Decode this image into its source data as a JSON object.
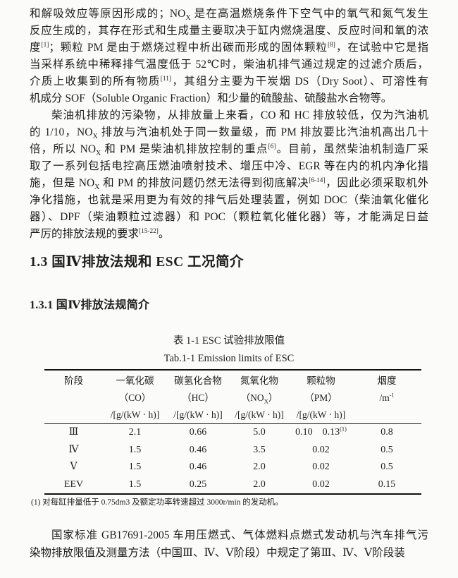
{
  "colors": {
    "paper": "#fbfbf9",
    "ink": "#1e1e1e",
    "table_rule": "#111111"
  },
  "document": {
    "paragraphs": [
      {
        "indent_first": false,
        "lines": [
          "和解吸效应等原因形成的；NO_{X} 是在高温燃烧条件下空气中的氧气和氮气发生",
          "反应生成的，其存在形式和生成量主要取决于缸内燃烧温度、反应时间和氧的浓",
          "度^{[1]}；颗粒 PM 是由于燃烧过程中析出碳而形成的固体颗粒^{[8]}，在试验中它是指",
          "当采样系统中稀释排气温度低于 52℃时，柴油机排气通过规定的过滤介质后，",
          "介质上收集到的所有物质^{[11]}，其组分主要为干炭烟 DS（Dry Soot）、可溶性有",
          "机成分 SOF（Soluble Organic Fraction）和少量的硫酸盐、硫酸盐水合物等。"
        ]
      },
      {
        "indent_first": true,
        "lines": [
          "柴油机排放的污染物，从排放量上来看，CO 和 HC 排放较低，仅为汽油机",
          "的 1/10，NO_{X} 排放与汽油机处于同一数量级，而 PM 排放要比汽油机高出几十",
          "倍，所以 NO_{X} 和 PM 是柴油机排放控制的重点^{[6]}。目前，虽然柴油机制造厂采",
          "取了一系列包括电控高压燃油喷射技术、增压中冷、EGR 等在内的机内净化措",
          "施，但是 NO_{X} 和 PM 的排放问题仍然无法得到彻底解决^{[6-14]}，因此必须采取机外",
          "净化措施，也就是采用更为有效的排气后处理装置，例如 DOC（柴油氧化催化",
          "器）、DPF（柴油颗粒过滤器）和 POC（颗粒氧化催化器）等，才能满足日益",
          "严厉的排放法规的要求^{[15-22]}。"
        ]
      }
    ],
    "section_heading": "1.3 国Ⅳ排放法规和 ESC 工况简介",
    "subsection_heading": "1.3.1 国Ⅳ排放法规简介",
    "table": {
      "caption_zh": "表 1-1 ESC 试验排放限值",
      "caption_en": "Tab.1-1 Emission limits of ESC",
      "header_columns": [
        [
          "阶段",
          "",
          ""
        ],
        [
          "一氧化碳",
          "（CO）",
          "/[g/(kW · h)]"
        ],
        [
          "碳氢化合物",
          "（HC）",
          "/[g/(kW · h)]"
        ],
        [
          "氮氧化物",
          "（NO_{X}）",
          "/[g/(kW · h)]"
        ],
        [
          "颗粒物",
          "（PM）",
          "/[g/(kW · h)]"
        ],
        [
          "烟度",
          "/m^{-1}",
          ""
        ]
      ],
      "rows": [
        [
          "Ⅲ",
          "2.1",
          "0.66",
          "5.0",
          "0.10　0.13^{(1)}",
          "0.8"
        ],
        [
          "Ⅳ",
          "1.5",
          "0.46",
          "3.5",
          "0.02",
          "0.5"
        ],
        [
          "Ⅴ",
          "1.5",
          "0.46",
          "2.0",
          "0.02",
          "0.5"
        ],
        [
          "EEV",
          "1.5",
          "0.25",
          "2.0",
          "0.02",
          "0.15"
        ]
      ],
      "footnote": "(1) 对每缸排量低于 0.75dm3 及额定功率转速超过 3000r/min 的发动机。"
    },
    "closing_paragraph": {
      "indent_first": true,
      "lines": [
        "国家标准 GB17691-2005 车用压燃式、气体燃料点燃式发动机与汽车排气污",
        "染物排放限值及测量方法（中国Ⅲ、Ⅳ、Ⅴ阶段）中规定了第Ⅲ、Ⅳ、Ⅴ阶段装"
      ]
    }
  }
}
